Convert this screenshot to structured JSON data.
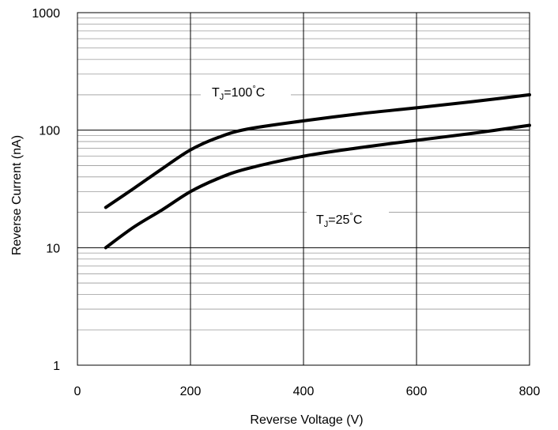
{
  "chart_data": {
    "type": "line",
    "xlabel": "Reverse Voltage (V)",
    "ylabel": "Reverse Current (nA)",
    "xlim": [
      0,
      800
    ],
    "ylim": [
      1,
      1000
    ],
    "yscale": "log",
    "grid": true,
    "x_ticks": [
      "0",
      "200",
      "400",
      "600",
      "800"
    ],
    "y_ticks": [
      "1",
      "10",
      "100",
      "1000"
    ],
    "series": [
      {
        "label_main": "T",
        "label_sub": "J",
        "label_rest": "=100",
        "label_deg": "°",
        "label_unit": "C",
        "x": [
          50,
          100,
          150,
          200,
          250,
          300,
          400,
          500,
          600,
          700,
          800
        ],
        "y": [
          22,
          32,
          47,
          68,
          87,
          102,
          120,
          138,
          155,
          175,
          200
        ]
      },
      {
        "label_main": "T",
        "label_sub": "J",
        "label_rest": "=25",
        "label_deg": "°",
        "label_unit": "C",
        "x": [
          50,
          100,
          150,
          200,
          250,
          300,
          400,
          500,
          600,
          700,
          800
        ],
        "y": [
          10,
          15,
          21,
          30,
          39,
          47,
          60,
          71,
          82,
          94,
          110
        ]
      }
    ]
  }
}
